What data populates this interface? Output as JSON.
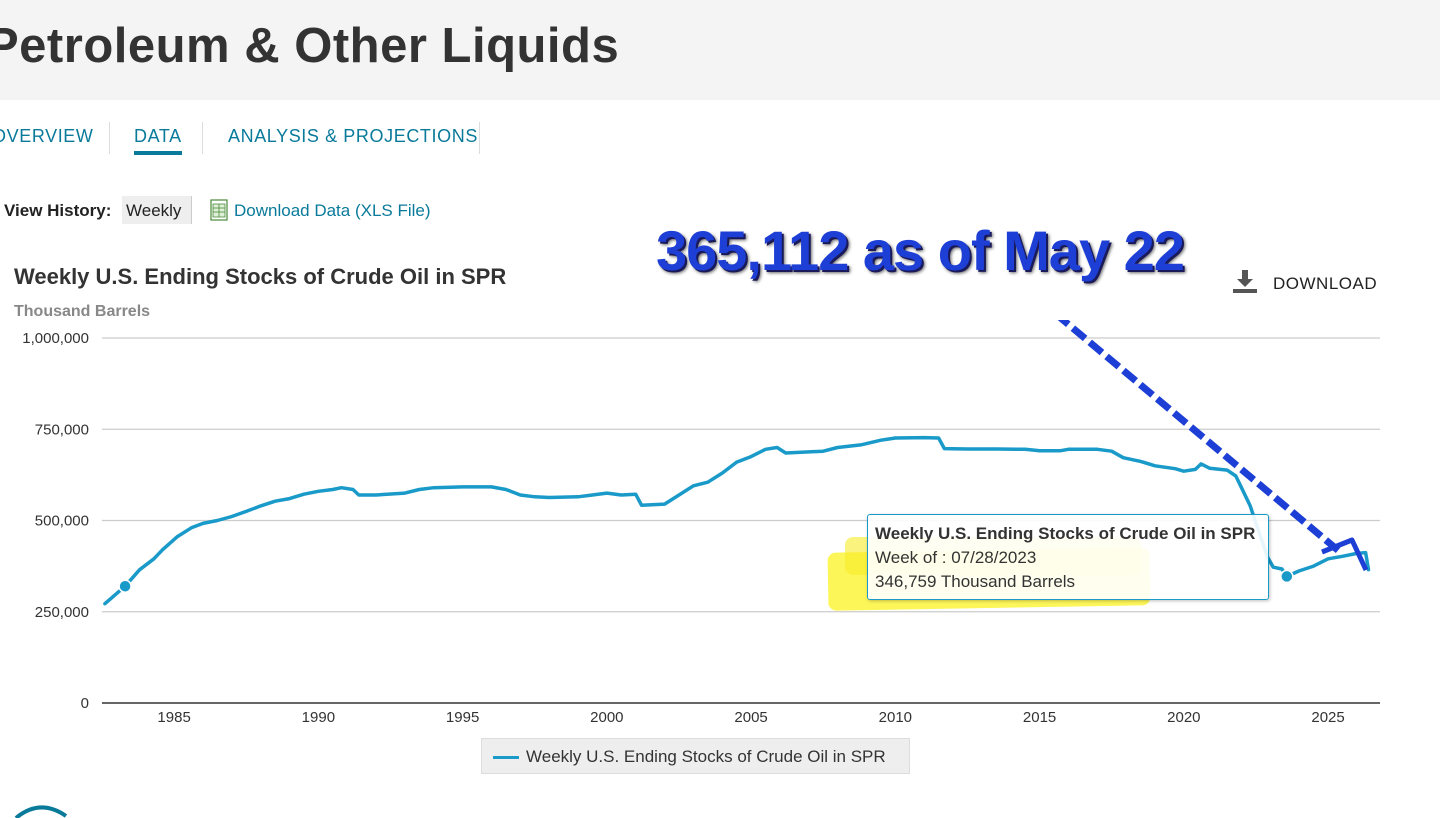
{
  "page": {
    "title": "Petroleum & Other Liquids"
  },
  "nav": {
    "tabs": [
      {
        "label": "OVERVIEW"
      },
      {
        "label": "DATA",
        "active": true
      },
      {
        "label": "ANALYSIS & PROJECTIONS"
      }
    ]
  },
  "history": {
    "label": "View History:",
    "selected": "Weekly",
    "download_label": "Download Data (XLS File)"
  },
  "annotation": {
    "text": "365,112 as of May 22",
    "color": "#1e3fd6"
  },
  "chart_download": {
    "label": "DOWNLOAD"
  },
  "tooltip": {
    "title": "Weekly U.S. Ending Stocks of Crude Oil in SPR",
    "week": "Week of : 07/28/2023",
    "value": "346,759 Thousand Barrels",
    "highlight_color": "#fcf53c"
  },
  "colors": {
    "series": "#1a9ac9",
    "brand": "#0a7a9b",
    "annotation": "#1e3fd6"
  },
  "chart_data": {
    "type": "line",
    "title": "Weekly U.S. Ending Stocks of Crude Oil in SPR",
    "ylabel": "Thousand Barrels",
    "xlabel": "",
    "ylim": [
      0,
      1000000
    ],
    "xlim": [
      1982.5,
      2026.8
    ],
    "yticks": [
      {
        "value": 0,
        "label": "0"
      },
      {
        "value": 250000,
        "label": "250,000"
      },
      {
        "value": 500000,
        "label": "500,000"
      },
      {
        "value": 750000,
        "label": "750,000"
      },
      {
        "value": 1000000,
        "label": "1,000,000"
      }
    ],
    "xticks": [
      {
        "value": 1985,
        "label": "1985"
      },
      {
        "value": 1990,
        "label": "1990"
      },
      {
        "value": 1995,
        "label": "1995"
      },
      {
        "value": 2000,
        "label": "2000"
      },
      {
        "value": 2005,
        "label": "2005"
      },
      {
        "value": 2010,
        "label": "2010"
      },
      {
        "value": 2015,
        "label": "2015"
      },
      {
        "value": 2020,
        "label": "2020"
      },
      {
        "value": 2025,
        "label": "2025"
      }
    ],
    "grid": true,
    "legend_position": "bottom-center",
    "series": [
      {
        "name": "Weekly U.S. Ending Stocks of Crude Oil in SPR",
        "points": [
          [
            1982.6,
            272000
          ],
          [
            1983.3,
            320000
          ],
          [
            1983.8,
            365000
          ],
          [
            1984.3,
            395000
          ],
          [
            1984.6,
            420000
          ],
          [
            1985.1,
            455000
          ],
          [
            1985.6,
            480000
          ],
          [
            1986.0,
            492000
          ],
          [
            1986.5,
            500000
          ],
          [
            1987.0,
            511000
          ],
          [
            1987.5,
            525000
          ],
          [
            1988.0,
            540000
          ],
          [
            1988.5,
            553000
          ],
          [
            1989.0,
            560000
          ],
          [
            1989.5,
            572000
          ],
          [
            1990.0,
            580000
          ],
          [
            1990.5,
            585000
          ],
          [
            1990.8,
            590000
          ],
          [
            1991.2,
            585000
          ],
          [
            1991.4,
            570000
          ],
          [
            1992.0,
            570000
          ],
          [
            1993.0,
            575000
          ],
          [
            1993.5,
            585000
          ],
          [
            1994.0,
            590000
          ],
          [
            1995.0,
            592000
          ],
          [
            1996.0,
            592000
          ],
          [
            1996.5,
            585000
          ],
          [
            1997.0,
            570000
          ],
          [
            1997.5,
            565000
          ],
          [
            1998.0,
            563000
          ],
          [
            1999.0,
            565000
          ],
          [
            1999.5,
            570000
          ],
          [
            2000.0,
            575000
          ],
          [
            2000.5,
            570000
          ],
          [
            2001.0,
            572000
          ],
          [
            2001.2,
            542000
          ],
          [
            2002.0,
            545000
          ],
          [
            2002.5,
            570000
          ],
          [
            2003.0,
            595000
          ],
          [
            2003.5,
            605000
          ],
          [
            2004.0,
            630000
          ],
          [
            2004.5,
            660000
          ],
          [
            2005.0,
            675000
          ],
          [
            2005.5,
            695000
          ],
          [
            2005.9,
            700000
          ],
          [
            2006.2,
            685000
          ],
          [
            2007.0,
            688000
          ],
          [
            2007.5,
            690000
          ],
          [
            2008.0,
            700000
          ],
          [
            2008.8,
            707000
          ],
          [
            2009.5,
            720000
          ],
          [
            2010.0,
            726000
          ],
          [
            2011.0,
            727000
          ],
          [
            2011.5,
            726000
          ],
          [
            2011.7,
            697000
          ],
          [
            2012.5,
            696000
          ],
          [
            2013.5,
            696000
          ],
          [
            2014.5,
            695000
          ],
          [
            2015.0,
            691000
          ],
          [
            2015.7,
            691000
          ],
          [
            2016.0,
            695000
          ],
          [
            2017.0,
            695000
          ],
          [
            2017.5,
            690000
          ],
          [
            2017.9,
            672000
          ],
          [
            2018.5,
            662000
          ],
          [
            2019.0,
            650000
          ],
          [
            2019.7,
            642000
          ],
          [
            2020.0,
            635000
          ],
          [
            2020.4,
            640000
          ],
          [
            2020.6,
            655000
          ],
          [
            2020.9,
            643000
          ],
          [
            2021.5,
            638000
          ],
          [
            2021.8,
            622000
          ],
          [
            2022.0,
            590000
          ],
          [
            2022.3,
            540000
          ],
          [
            2022.6,
            470000
          ],
          [
            2022.9,
            400000
          ],
          [
            2023.1,
            372000
          ],
          [
            2023.4,
            367000
          ],
          [
            2023.57,
            346759
          ],
          [
            2024.0,
            362000
          ],
          [
            2024.5,
            375000
          ],
          [
            2025.0,
            395000
          ],
          [
            2025.5,
            402000
          ],
          [
            2026.0,
            410000
          ],
          [
            2026.3,
            412000
          ],
          [
            2026.4,
            365112
          ]
        ]
      }
    ],
    "markers": [
      {
        "x": 1983.3,
        "y": 320000
      },
      {
        "x": 2023.57,
        "y": 346759
      }
    ]
  }
}
